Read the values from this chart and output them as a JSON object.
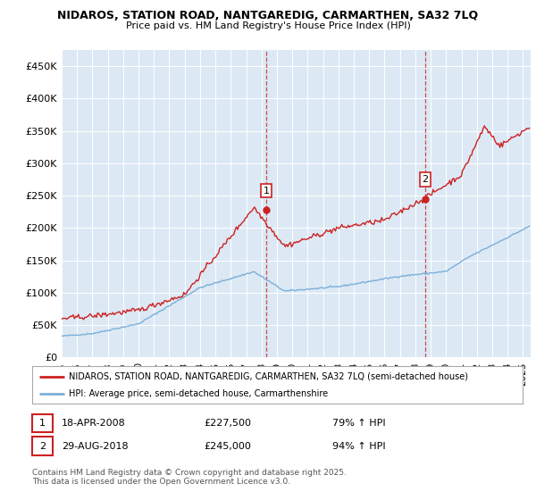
{
  "title": "NIDAROS, STATION ROAD, NANTGAREDIG, CARMARTHEN, SA32 7LQ",
  "subtitle": "Price paid vs. HM Land Registry's House Price Index (HPI)",
  "ylim": [
    0,
    475000
  ],
  "yticks": [
    0,
    50000,
    100000,
    150000,
    200000,
    250000,
    300000,
    350000,
    400000,
    450000
  ],
  "ytick_labels": [
    "£0",
    "£50K",
    "£100K",
    "£150K",
    "£200K",
    "£250K",
    "£300K",
    "£350K",
    "£400K",
    "£450K"
  ],
  "xlim_start": 1995.0,
  "xlim_end": 2025.5,
  "purchase1_date": 2008.3,
  "purchase1_price": 227500,
  "purchase1_label": "1",
  "purchase2_date": 2018.65,
  "purchase2_price": 245000,
  "purchase2_label": "2",
  "legend_line1": "NIDAROS, STATION ROAD, NANTGAREDIG, CARMARTHEN, SA32 7LQ (semi-detached house)",
  "legend_line2": "HPI: Average price, semi-detached house, Carmarthenshire",
  "ann1_num": "1",
  "ann1_date": "18-APR-2008",
  "ann1_price": "£227,500",
  "ann1_hpi": "79% ↑ HPI",
  "ann2_num": "2",
  "ann2_date": "29-AUG-2018",
  "ann2_price": "£245,000",
  "ann2_hpi": "94% ↑ HPI",
  "footer": "Contains HM Land Registry data © Crown copyright and database right 2025.\nThis data is licensed under the Open Government Licence v3.0.",
  "line_color_red": "#cc2222",
  "line_color_blue": "#7bb0d8",
  "plot_bg": "#dce9f5",
  "vline_color": "#cc2222",
  "grid_color": "#ffffff",
  "box_color": "#cc2222"
}
